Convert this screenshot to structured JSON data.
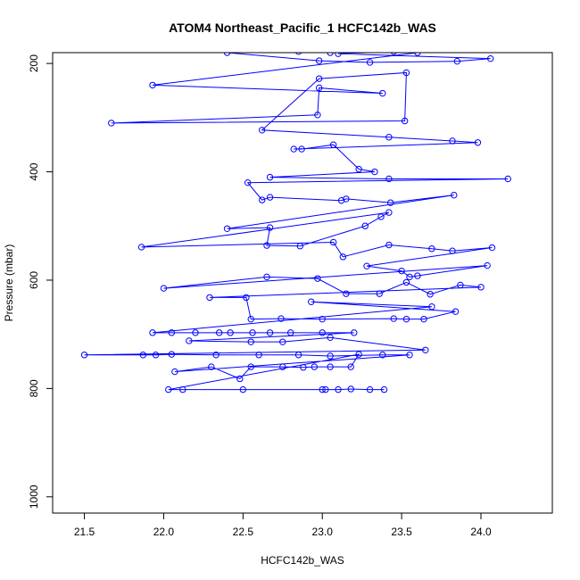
{
  "chart_data": {
    "type": "line",
    "title": "ATOM4 Northeast_Pacific_1 HCFC142b_WAS",
    "xlabel": "HCFC142b_WAS",
    "ylabel": "Pressure (mbar)",
    "xlim": [
      21.3,
      24.45
    ],
    "ylim": [
      1030,
      180
    ],
    "y_reversed": true,
    "x_ticks": [
      "21.5",
      "22.0",
      "22.5",
      "23.0",
      "23.5",
      "24.0"
    ],
    "y_ticks": [
      "200",
      "400",
      "600",
      "800",
      "1000"
    ],
    "color": "#0000ff",
    "marker": "open-circle",
    "points": [
      [
        22.4,
        180
      ],
      [
        22.98,
        195
      ],
      [
        23.3,
        198
      ],
      [
        23.85,
        196
      ],
      [
        24.06,
        191
      ],
      [
        23.1,
        182
      ],
      [
        23.45,
        178
      ],
      [
        22.85,
        178
      ],
      [
        23.05,
        180
      ],
      [
        23.6,
        180
      ],
      [
        21.93,
        240
      ],
      [
        23.38,
        255
      ],
      [
        22.98,
        245
      ],
      [
        22.97,
        295
      ],
      [
        21.67,
        310
      ],
      [
        23.52,
        306
      ],
      [
        23.53,
        217
      ],
      [
        22.98,
        228
      ],
      [
        22.62,
        323
      ],
      [
        23.42,
        336
      ],
      [
        23.82,
        343
      ],
      [
        23.98,
        346
      ],
      [
        22.82,
        358
      ],
      [
        22.87,
        358
      ],
      [
        23.07,
        350
      ],
      [
        23.23,
        395
      ],
      [
        23.33,
        400
      ],
      [
        22.67,
        410
      ],
      [
        23.42,
        413
      ],
      [
        24.17,
        413
      ],
      [
        22.53,
        420
      ],
      [
        22.62,
        452
      ],
      [
        22.67,
        447
      ],
      [
        23.12,
        453
      ],
      [
        23.15,
        450
      ],
      [
        23.43,
        457
      ],
      [
        23.83,
        443
      ],
      [
        22.4,
        505
      ],
      [
        22.67,
        503
      ],
      [
        22.65,
        536
      ],
      [
        22.86,
        537
      ],
      [
        23.27,
        500
      ],
      [
        23.37,
        483
      ],
      [
        23.42,
        475
      ],
      [
        21.86,
        539
      ],
      [
        23.07,
        530
      ],
      [
        23.13,
        557
      ],
      [
        23.42,
        535
      ],
      [
        23.69,
        542
      ],
      [
        23.82,
        546
      ],
      [
        24.07,
        540
      ],
      [
        23.28,
        574
      ],
      [
        23.5,
        583
      ],
      [
        23.55,
        594
      ],
      [
        23.6,
        592
      ],
      [
        24.04,
        573
      ],
      [
        22.0,
        615
      ],
      [
        22.65,
        594
      ],
      [
        22.97,
        597
      ],
      [
        23.15,
        625
      ],
      [
        23.36,
        625
      ],
      [
        23.53,
        604
      ],
      [
        23.68,
        626
      ],
      [
        23.87,
        609
      ],
      [
        24.0,
        613
      ],
      [
        22.29,
        632
      ],
      [
        22.52,
        632
      ],
      [
        22.55,
        672
      ],
      [
        22.74,
        671
      ],
      [
        23.0,
        672
      ],
      [
        23.45,
        671
      ],
      [
        23.53,
        672
      ],
      [
        23.64,
        672
      ],
      [
        23.84,
        658
      ],
      [
        22.93,
        640
      ],
      [
        23.69,
        649
      ],
      [
        21.93,
        697
      ],
      [
        22.05,
        697
      ],
      [
        22.2,
        697
      ],
      [
        22.35,
        697
      ],
      [
        22.42,
        697
      ],
      [
        22.56,
        697
      ],
      [
        22.67,
        697
      ],
      [
        22.8,
        697
      ],
      [
        23.0,
        697
      ],
      [
        23.2,
        697
      ],
      [
        22.16,
        712
      ],
      [
        22.55,
        714
      ],
      [
        22.75,
        714
      ],
      [
        23.05,
        706
      ],
      [
        23.65,
        729
      ],
      [
        21.5,
        738
      ],
      [
        21.87,
        738
      ],
      [
        21.95,
        738
      ],
      [
        22.05,
        737
      ],
      [
        22.33,
        738
      ],
      [
        22.6,
        738
      ],
      [
        22.85,
        738
      ],
      [
        23.05,
        740
      ],
      [
        23.38,
        738
      ],
      [
        23.55,
        738
      ],
      [
        22.07,
        769
      ],
      [
        22.3,
        760
      ],
      [
        22.48,
        782
      ],
      [
        22.55,
        760
      ],
      [
        22.75,
        760
      ],
      [
        22.88,
        761
      ],
      [
        22.95,
        760
      ],
      [
        23.05,
        760
      ],
      [
        23.18,
        760
      ],
      [
        23.23,
        737
      ],
      [
        22.03,
        802
      ],
      [
        22.12,
        802
      ],
      [
        22.5,
        802
      ],
      [
        23.0,
        802
      ],
      [
        23.02,
        802
      ],
      [
        23.1,
        802
      ],
      [
        23.18,
        801
      ],
      [
        23.3,
        802
      ],
      [
        23.39,
        802
      ]
    ]
  }
}
